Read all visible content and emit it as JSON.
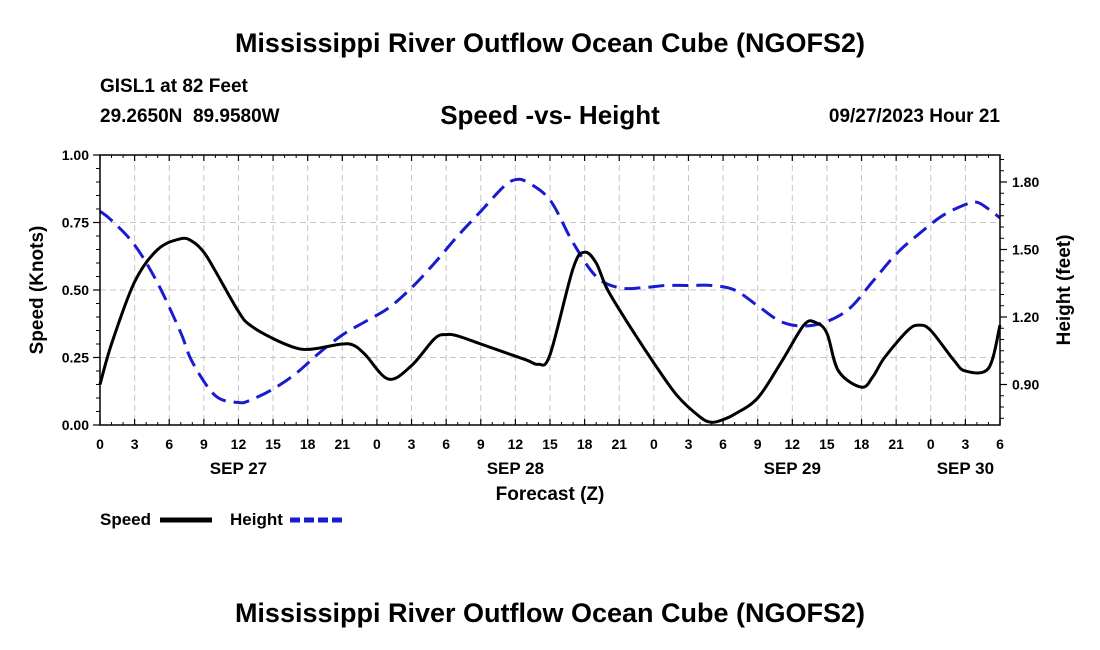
{
  "page": {
    "title": "Mississippi River Outflow Ocean Cube (NGOFS2)",
    "title_repeat": "Mississippi River Outflow Ocean Cube (NGOFS2)"
  },
  "station": {
    "name": "GISL1 at 82 Feet",
    "coords": "29.2650N  89.9580W",
    "datetime": "09/27/2023 Hour 21"
  },
  "chart_data": {
    "type": "line",
    "title": "Speed -vs- Height",
    "xlabel": "Forecast (Z)",
    "ylabel": "Speed (Knots)",
    "y2label": "Height (feet)",
    "x_unit": "hours from Sep 27 00Z",
    "xlim": [
      0,
      78
    ],
    "ylim": [
      0,
      1.0
    ],
    "y2lim": [
      0.72,
      1.92
    ],
    "x_ticks": [
      {
        "x": 0,
        "label": "0"
      },
      {
        "x": 3,
        "label": "3"
      },
      {
        "x": 6,
        "label": "6"
      },
      {
        "x": 9,
        "label": "9"
      },
      {
        "x": 12,
        "label": "12"
      },
      {
        "x": 15,
        "label": "15"
      },
      {
        "x": 18,
        "label": "18"
      },
      {
        "x": 21,
        "label": "21"
      },
      {
        "x": 24,
        "label": "0"
      },
      {
        "x": 27,
        "label": "3"
      },
      {
        "x": 30,
        "label": "6"
      },
      {
        "x": 33,
        "label": "9"
      },
      {
        "x": 36,
        "label": "12"
      },
      {
        "x": 39,
        "label": "15"
      },
      {
        "x": 42,
        "label": "18"
      },
      {
        "x": 45,
        "label": "21"
      },
      {
        "x": 48,
        "label": "0"
      },
      {
        "x": 51,
        "label": "3"
      },
      {
        "x": 54,
        "label": "6"
      },
      {
        "x": 57,
        "label": "9"
      },
      {
        "x": 60,
        "label": "12"
      },
      {
        "x": 63,
        "label": "15"
      },
      {
        "x": 66,
        "label": "18"
      },
      {
        "x": 69,
        "label": "21"
      },
      {
        "x": 72,
        "label": "0"
      },
      {
        "x": 75,
        "label": "3"
      },
      {
        "x": 78,
        "label": "6"
      }
    ],
    "date_labels": [
      {
        "x": 12,
        "label": "SEP 27"
      },
      {
        "x": 36,
        "label": "SEP 28"
      },
      {
        "x": 60,
        "label": "SEP 29"
      },
      {
        "x": 75,
        "label": "SEP 30"
      }
    ],
    "y_ticks": [
      {
        "v": 0.0,
        "label": "0.00"
      },
      {
        "v": 0.25,
        "label": "0.25"
      },
      {
        "v": 0.5,
        "label": "0.50"
      },
      {
        "v": 0.75,
        "label": "0.75"
      },
      {
        "v": 1.0,
        "label": "1.00"
      }
    ],
    "y2_ticks": [
      {
        "v": 0.9,
        "label": "0.90"
      },
      {
        "v": 1.2,
        "label": "1.20"
      },
      {
        "v": 1.5,
        "label": "1.50"
      },
      {
        "v": 1.8,
        "label": "1.80"
      }
    ],
    "grid": true,
    "legend": "bottom-left",
    "series": [
      {
        "name": "Speed",
        "axis": "left",
        "color": "#000000",
        "dash": "solid",
        "x": [
          0,
          1,
          3,
          5,
          7,
          8,
          9,
          10,
          12,
          13,
          15,
          17,
          18,
          19,
          21,
          22,
          23,
          25,
          27,
          29,
          30,
          31,
          33,
          35,
          37,
          38,
          39,
          41,
          42,
          43,
          44,
          46,
          48,
          50,
          52,
          53,
          54,
          55,
          57,
          59,
          61,
          62,
          63,
          64,
          66,
          67,
          68,
          70,
          71,
          72,
          74,
          75,
          77,
          78
        ],
        "values": [
          0.15,
          0.3,
          0.53,
          0.65,
          0.69,
          0.68,
          0.64,
          0.57,
          0.42,
          0.37,
          0.32,
          0.285,
          0.28,
          0.285,
          0.3,
          0.295,
          0.26,
          0.17,
          0.22,
          0.32,
          0.335,
          0.33,
          0.3,
          0.27,
          0.24,
          0.225,
          0.26,
          0.58,
          0.64,
          0.6,
          0.5,
          0.36,
          0.23,
          0.11,
          0.03,
          0.01,
          0.02,
          0.04,
          0.1,
          0.23,
          0.37,
          0.38,
          0.34,
          0.2,
          0.14,
          0.18,
          0.25,
          0.35,
          0.37,
          0.35,
          0.24,
          0.2,
          0.21,
          0.37
        ]
      },
      {
        "name": "Height",
        "axis": "right",
        "color": "#1a1ad0",
        "dash": "dashed",
        "x": [
          0,
          1,
          3,
          5,
          7,
          8,
          10,
          12,
          13,
          15,
          17,
          19,
          21,
          23,
          25,
          27,
          29,
          31,
          33,
          35,
          36,
          37,
          39,
          41,
          43,
          45,
          47,
          49,
          51,
          53,
          55,
          57,
          59,
          61,
          63,
          65,
          67,
          69,
          71,
          73,
          75,
          76,
          77,
          78
        ],
        "values": [
          1.67,
          1.63,
          1.52,
          1.35,
          1.13,
          1.0,
          0.85,
          0.82,
          0.83,
          0.88,
          0.95,
          1.04,
          1.12,
          1.18,
          1.24,
          1.33,
          1.44,
          1.56,
          1.67,
          1.78,
          1.81,
          1.8,
          1.72,
          1.53,
          1.38,
          1.33,
          1.33,
          1.34,
          1.34,
          1.34,
          1.32,
          1.25,
          1.18,
          1.16,
          1.18,
          1.24,
          1.36,
          1.48,
          1.57,
          1.65,
          1.7,
          1.71,
          1.68,
          1.64
        ]
      }
    ]
  }
}
